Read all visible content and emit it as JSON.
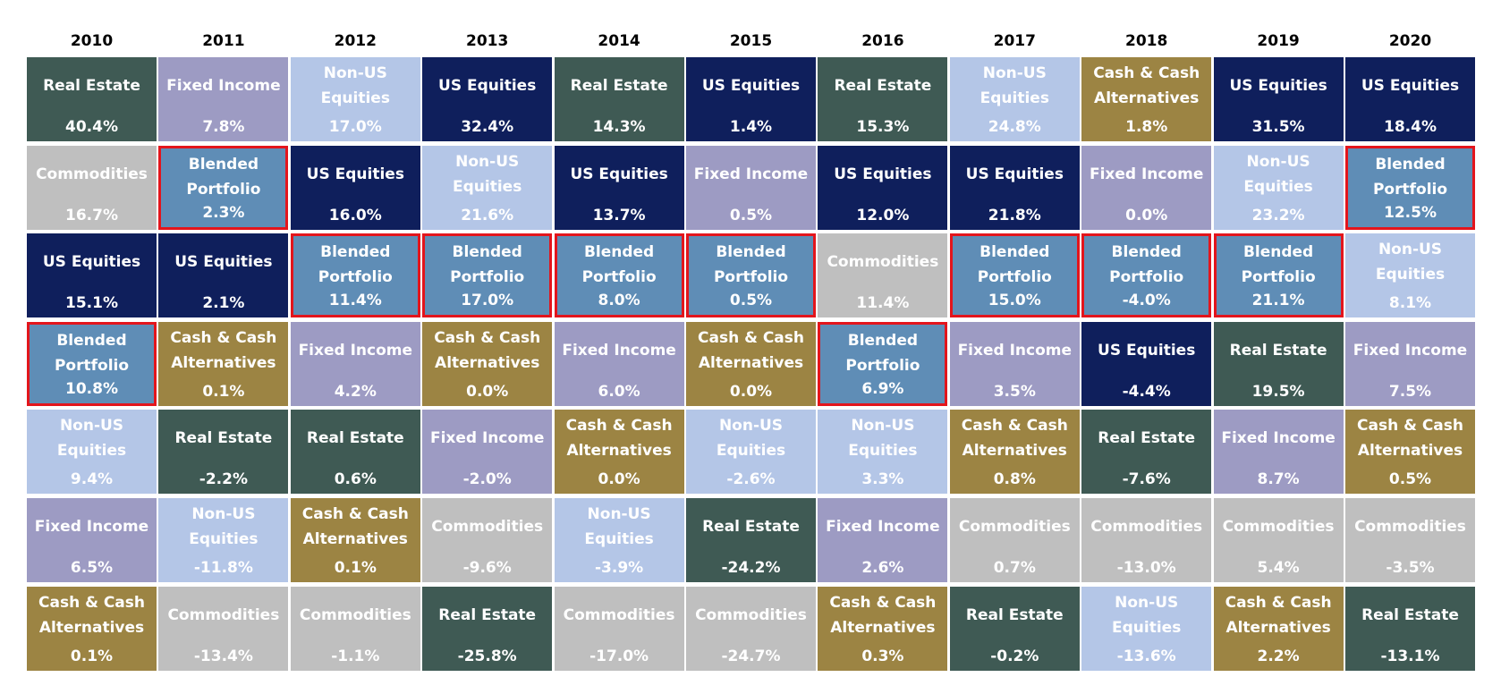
{
  "years": [
    "2010",
    "2011",
    "2012",
    "2013",
    "2014",
    "2015",
    "2016",
    "2017",
    "2018",
    "2019",
    "2020"
  ],
  "columns": [
    [
      {
        "asset": "Real Estate",
        "return": "40.4%"
      },
      {
        "asset": "Commodities",
        "return": "16.7%"
      },
      {
        "asset": "US Equities",
        "return": "15.1%"
      },
      {
        "asset": "Blended Portfolio",
        "return": "10.8%"
      },
      {
        "asset": "Non-US Equities",
        "return": "9.4%"
      },
      {
        "asset": "Fixed Income",
        "return": "6.5%"
      },
      {
        "asset": "Cash & Cash Alternatives",
        "return": "0.1%"
      }
    ],
    [
      {
        "asset": "Fixed Income",
        "return": "7.8%"
      },
      {
        "asset": "Blended Portfolio",
        "return": "2.3%"
      },
      {
        "asset": "US Equities",
        "return": "2.1%"
      },
      {
        "asset": "Cash & Cash Alternatives",
        "return": "0.1%"
      },
      {
        "asset": "Real Estate",
        "return": "-2.2%"
      },
      {
        "asset": "Non-US Equities",
        "return": "-11.8%"
      },
      {
        "asset": "Commodities",
        "return": "-13.4%"
      }
    ],
    [
      {
        "asset": "Non-US Equities",
        "return": "17.0%"
      },
      {
        "asset": "US Equities",
        "return": "16.0%"
      },
      {
        "asset": "Blended Portfolio",
        "return": "11.4%"
      },
      {
        "asset": "Fixed Income",
        "return": "4.2%"
      },
      {
        "asset": "Real Estate",
        "return": "0.6%"
      },
      {
        "asset": "Cash & Cash Alternatives",
        "return": "0.1%"
      },
      {
        "asset": "Commodities",
        "return": "-1.1%"
      }
    ],
    [
      {
        "asset": "US Equities",
        "return": "32.4%"
      },
      {
        "asset": "Non-US Equities",
        "return": "21.6%"
      },
      {
        "asset": "Blended Portfolio",
        "return": "17.0%"
      },
      {
        "asset": "Cash & Cash Alternatives",
        "return": "0.0%"
      },
      {
        "asset": "Fixed Income",
        "return": "-2.0%"
      },
      {
        "asset": "Commodities",
        "return": "-9.6%"
      },
      {
        "asset": "Real Estate",
        "return": "-25.8%"
      }
    ],
    [
      {
        "asset": "Real Estate",
        "return": "14.3%"
      },
      {
        "asset": "US Equities",
        "return": "13.7%"
      },
      {
        "asset": "Blended Portfolio",
        "return": "8.0%"
      },
      {
        "asset": "Fixed Income",
        "return": "6.0%"
      },
      {
        "asset": "Cash & Cash Alternatives",
        "return": "0.0%"
      },
      {
        "asset": "Non-US Equities",
        "return": "-3.9%"
      },
      {
        "asset": "Commodities",
        "return": "-17.0%"
      }
    ],
    [
      {
        "asset": "US Equities",
        "return": "1.4%"
      },
      {
        "asset": "Fixed Income",
        "return": "0.5%"
      },
      {
        "asset": "Blended Portfolio",
        "return": "0.5%"
      },
      {
        "asset": "Cash & Cash Alternatives",
        "return": "0.0%"
      },
      {
        "asset": "Non-US Equities",
        "return": "-2.6%"
      },
      {
        "asset": "Real Estate",
        "return": "-24.2%"
      },
      {
        "asset": "Commodities",
        "return": "-24.7%"
      }
    ],
    [
      {
        "asset": "Real Estate",
        "return": "15.3%"
      },
      {
        "asset": "US Equities",
        "return": "12.0%"
      },
      {
        "asset": "Commodities",
        "return": "11.4%"
      },
      {
        "asset": "Blended Portfolio",
        "return": "6.9%"
      },
      {
        "asset": "Non-US Equities",
        "return": "3.3%"
      },
      {
        "asset": "Fixed Income",
        "return": "2.6%"
      },
      {
        "asset": "Cash & Cash Alternatives",
        "return": "0.3%"
      }
    ],
    [
      {
        "asset": "Non-US Equities",
        "return": "24.8%"
      },
      {
        "asset": "US Equities",
        "return": "21.8%"
      },
      {
        "asset": "Blended Portfolio",
        "return": "15.0%"
      },
      {
        "asset": "Fixed Income",
        "return": "3.5%"
      },
      {
        "asset": "Cash & Cash Alternatives",
        "return": "0.8%"
      },
      {
        "asset": "Commodities",
        "return": "0.7%"
      },
      {
        "asset": "Real Estate",
        "return": "-0.2%"
      }
    ],
    [
      {
        "asset": "Cash & Cash Alternatives",
        "return": "1.8%"
      },
      {
        "asset": "Fixed Income",
        "return": "0.0%"
      },
      {
        "asset": "Blended Portfolio",
        "return": "-4.0%"
      },
      {
        "asset": "US Equities",
        "return": "-4.4%"
      },
      {
        "asset": "Real Estate",
        "return": "-7.6%"
      },
      {
        "asset": "Commodities",
        "return": "-13.0%"
      },
      {
        "asset": "Non-US Equities",
        "return": "-13.6%"
      }
    ],
    [
      {
        "asset": "US Equities",
        "return": "31.5%"
      },
      {
        "asset": "Non-US Equities",
        "return": "23.2%"
      },
      {
        "asset": "Blended Portfolio",
        "return": "21.1%"
      },
      {
        "asset": "Real Estate",
        "return": "19.5%"
      },
      {
        "asset": "Fixed Income",
        "return": "8.7%"
      },
      {
        "asset": "Commodities",
        "return": "5.4%"
      },
      {
        "asset": "Cash & Cash Alternatives",
        "return": "2.2%"
      }
    ],
    [
      {
        "asset": "US Equities",
        "return": "18.4%"
      },
      {
        "asset": "Blended Portfolio",
        "return": "12.5%"
      },
      {
        "asset": "Non-US Equities",
        "return": "8.1%"
      },
      {
        "asset": "Fixed Income",
        "return": "7.5%"
      },
      {
        "asset": "Cash & Cash Alternatives",
        "return": "0.5%"
      },
      {
        "asset": "Commodities",
        "return": "-3.5%"
      },
      {
        "asset": "Real Estate",
        "return": "-13.1%"
      }
    ]
  ],
  "colors": {
    "Real Estate": "#3f5a54",
    "Fixed Income": "#9d9bc3",
    "Non-US Equities": "#b4c6e7",
    "US Equities": "#0f1f5c",
    "Commodities": "#bfbfbf",
    "Cash & Cash Alternatives": "#9c8443",
    "Blended Portfolio": "#5f8db6"
  },
  "highlight": "Blended Portfolio",
  "highlight_color": "#e3151c"
}
